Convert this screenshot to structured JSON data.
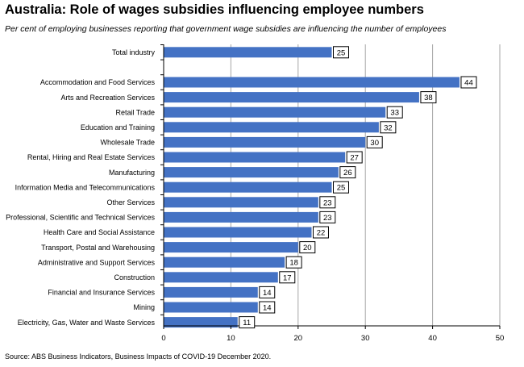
{
  "title": "Australia:  Role of wages subsidies  influencing  employee numbers",
  "subtitle": "Per cent of employing businesses reporting that government wage subsidies are influencing the number of employees",
  "source": "Source: ABS Business Indicators, Business Impacts of COVID-19 December 2020.",
  "chart_data": {
    "type": "bar",
    "orientation": "horizontal",
    "categories": [
      "Total industry",
      "",
      "Accommodation and Food Services",
      "Arts and Recreation Services",
      "Retail Trade",
      "Education and Training",
      "Wholesale Trade",
      "Rental, Hiring and Real Estate Services",
      "Manufacturing",
      "Information Media and Telecommunications",
      "Other Services",
      "Professional, Scientific and Technical Services",
      "Health Care and Social Assistance",
      "Transport, Postal and Warehousing",
      "Administrative and Support Services",
      "Construction",
      "Financial and Insurance Services",
      "Mining",
      "Electricity, Gas, Water and Waste Services"
    ],
    "values": [
      25,
      null,
      44,
      38,
      33,
      32,
      30,
      27,
      26,
      25,
      23,
      23,
      22,
      20,
      18,
      17,
      14,
      14,
      11
    ],
    "xlim": [
      0,
      50
    ],
    "xticks": [
      0,
      10,
      20,
      30,
      40,
      50
    ],
    "grid": true,
    "bar_color": "#4472C4",
    "grid_color": "#a6a6a6"
  }
}
